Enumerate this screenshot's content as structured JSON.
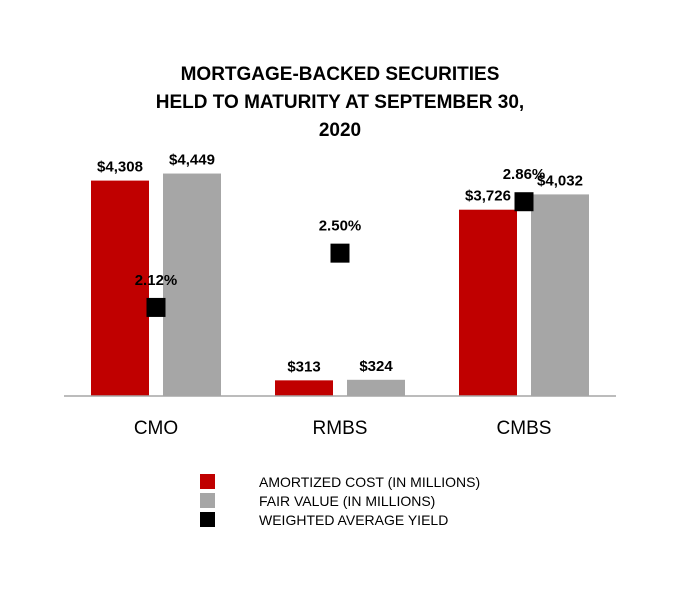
{
  "chart_data": {
    "type": "bar",
    "title": [
      "MORTGAGE-BACKED SECURITIES",
      "HELD TO MATURITY AT SEPTEMBER 30,",
      "2020"
    ],
    "categories": [
      "CMO",
      "RMBS",
      "CMBS"
    ],
    "series": [
      {
        "name": "AMORTIZED COST (IN MILLIONS)",
        "kind": "bar",
        "color": "#c00000",
        "values": [
          4308,
          313,
          3726
        ],
        "labels": [
          "$4,308",
          "$313",
          "$3,726"
        ]
      },
      {
        "name": "FAIR VALUE (IN MILLIONS)",
        "kind": "bar",
        "color": "#a6a6a6",
        "values": [
          4449,
          324,
          4032
        ],
        "labels": [
          "$4,449",
          "$324",
          "$4,032"
        ]
      },
      {
        "name": "WEIGHTED AVERAGE YIELD",
        "kind": "marker",
        "color": "#000000",
        "values": [
          2.12,
          2.5,
          2.86
        ],
        "labels": [
          "2.12%",
          "2.50%",
          "2.86%"
        ]
      }
    ],
    "ylim": [
      0,
      5000
    ],
    "yield_ylim": [
      1.5,
      3.25
    ],
    "xlabel": "",
    "ylabel": "",
    "grid": false,
    "legend_position": "bottom"
  }
}
